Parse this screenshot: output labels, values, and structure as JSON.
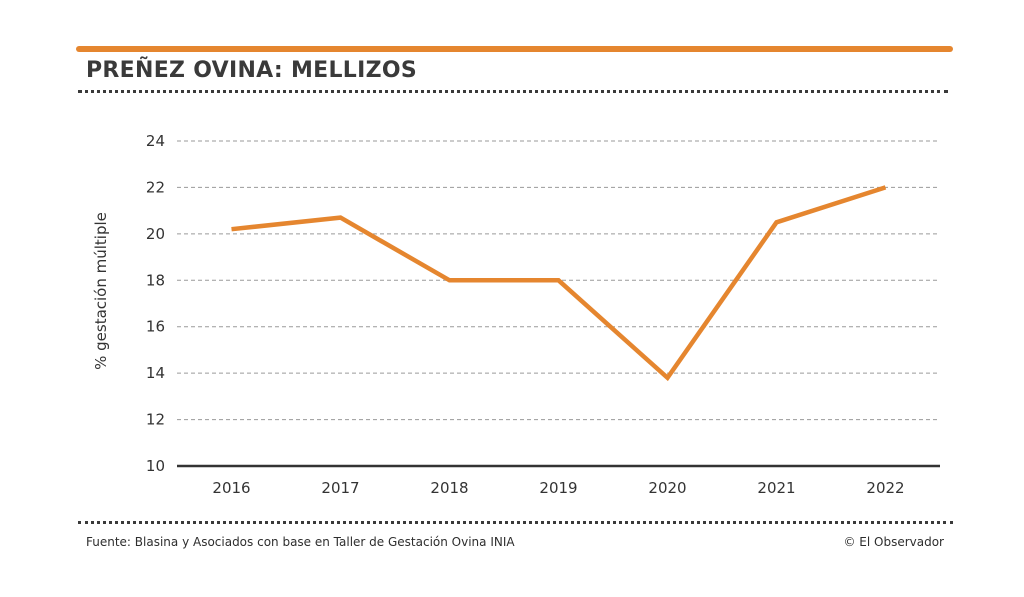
{
  "header": {
    "title": "PREÑEZ OVINA: MELLIZOS"
  },
  "footer": {
    "source": "Fuente: Blasina y Asociados con base en Taller de Gestación Ovina INIA",
    "credit": "© El Observador"
  },
  "colors": {
    "accent": "#e5862f",
    "text": "#333333",
    "grid": "#9a9a9a",
    "baseline": "#333333"
  },
  "chart_data": {
    "type": "line",
    "title": "PREÑEZ OVINA: MELLIZOS",
    "xlabel": "",
    "ylabel": "% gestación múltiple",
    "categories": [
      "2016",
      "2017",
      "2018",
      "2019",
      "2020",
      "2021",
      "2022"
    ],
    "series": [
      {
        "name": "% gestación múltiple",
        "values": [
          20.2,
          20.7,
          18.0,
          18.0,
          13.8,
          20.5,
          22.0
        ]
      }
    ],
    "ylim": [
      10,
      24
    ],
    "yticks": [
      10,
      12,
      14,
      16,
      18,
      20,
      22,
      24
    ],
    "grid": true,
    "legend": "none"
  }
}
